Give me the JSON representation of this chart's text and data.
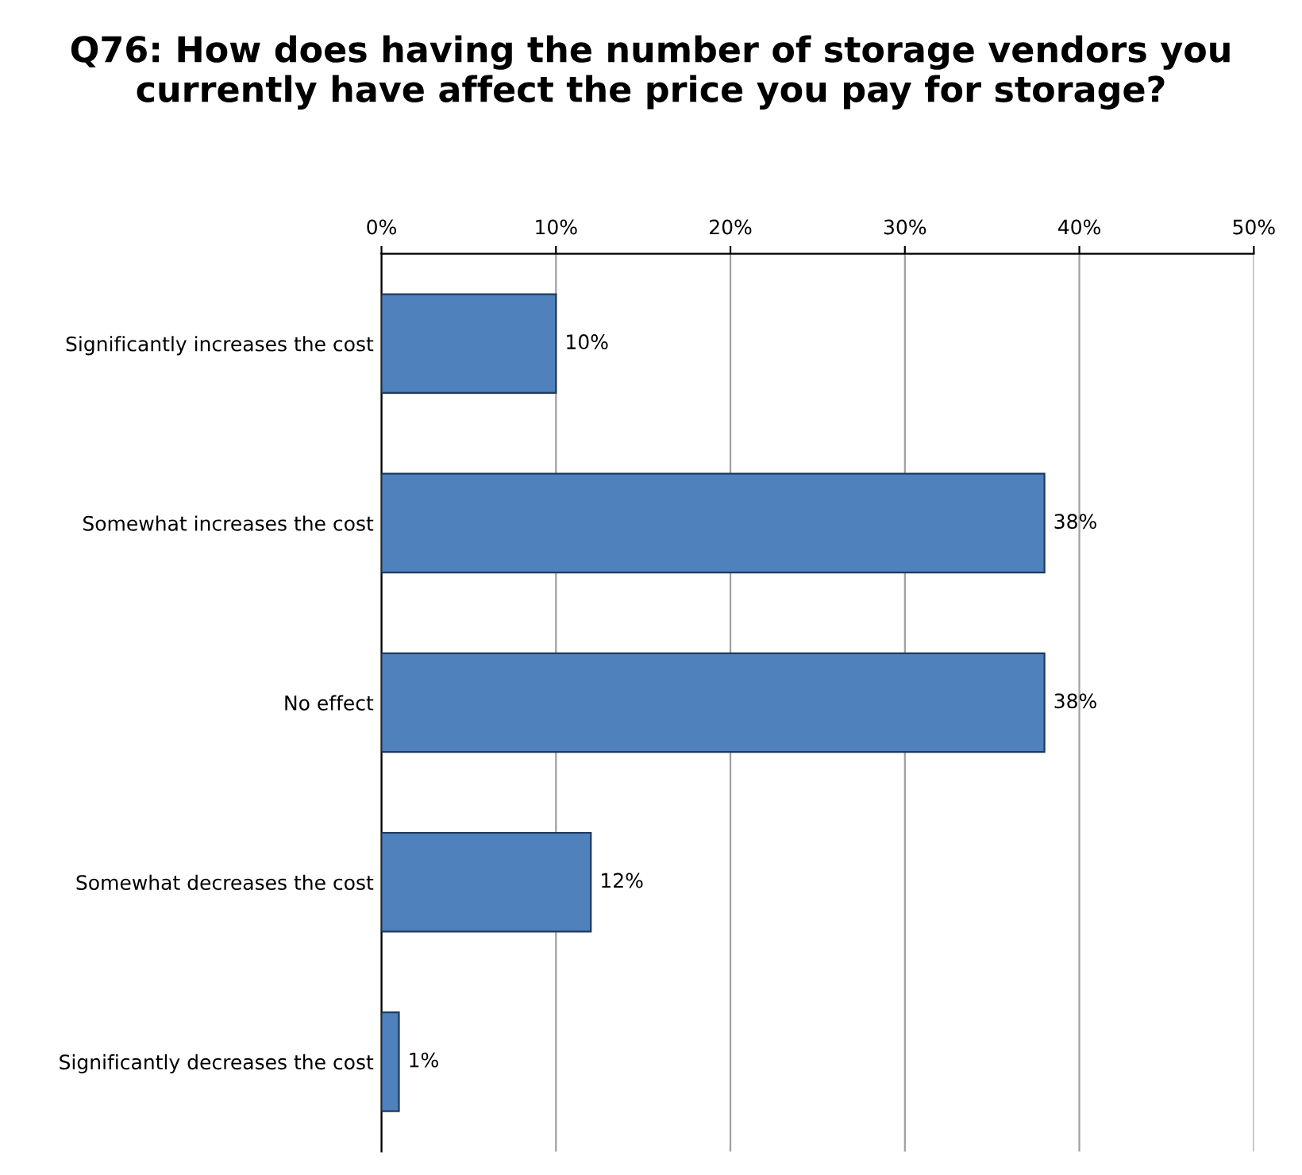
{
  "chart_data": {
    "type": "bar",
    "orientation": "horizontal",
    "title": "Q76: How does having the number of storage vendors you currently have affect the price you pay for storage?",
    "categories": [
      "Significantly increases the cost",
      "Somewhat increases the cost",
      "No effect",
      "Somewhat decreases the cost",
      "Significantly decreases the cost"
    ],
    "values": [
      10,
      38,
      38,
      12,
      1
    ],
    "value_labels": [
      "10%",
      "38%",
      "38%",
      "12%",
      "1%"
    ],
    "color": "#4f81bd",
    "xlim": [
      0,
      50
    ],
    "xticks": [
      {
        "value": 0,
        "label": "0%"
      },
      {
        "value": 10,
        "label": "10%"
      },
      {
        "value": 20,
        "label": "20%"
      },
      {
        "value": 30,
        "label": "30%"
      },
      {
        "value": 40,
        "label": "40%"
      },
      {
        "value": 50,
        "label": "50%"
      }
    ],
    "grid": "x",
    "legend": false
  }
}
